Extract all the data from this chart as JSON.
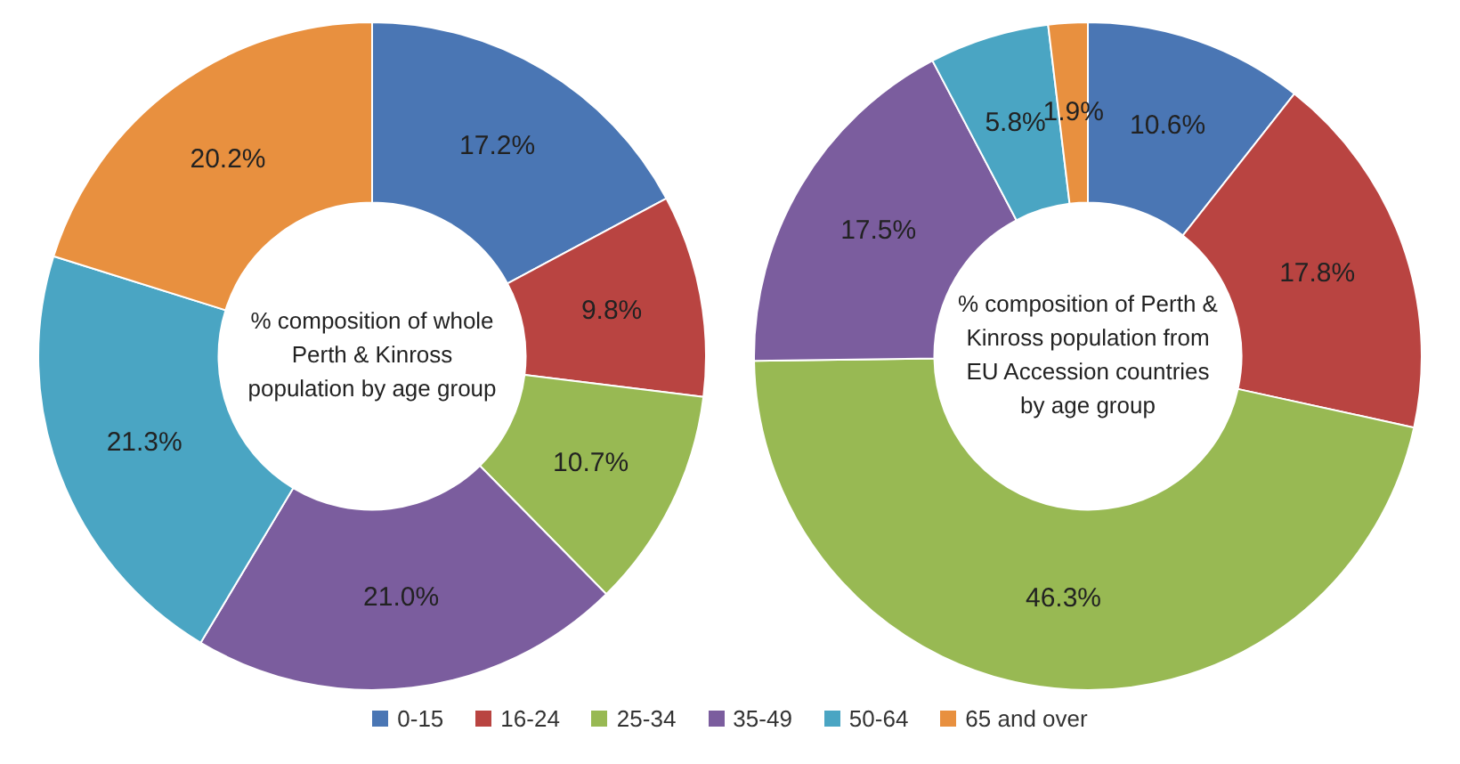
{
  "chart_data": [
    {
      "type": "donut",
      "title": "% composition of whole Perth & Kinross population by age group",
      "categories": [
        "0-15",
        "16-24",
        "25-34",
        "35-49",
        "50-64",
        "65 and over"
      ],
      "values": [
        17.2,
        9.8,
        10.7,
        21.0,
        21.3,
        20.2
      ],
      "value_labels": [
        "17.2%",
        "9.8%",
        "10.7%",
        "21.0%",
        "21.3%",
        "20.2%"
      ],
      "colors": [
        "#4a76b4",
        "#b94441",
        "#98b953",
        "#7b5d9e",
        "#4aa5c3",
        "#e8903f"
      ],
      "legend": "bottom"
    },
    {
      "type": "donut",
      "title": "% composition of Perth & Kinross population from EU Accession countries by age group",
      "categories": [
        null,
        null,
        null,
        null,
        null,
        null
      ],
      "values": [
        10.6,
        17.8,
        46.3,
        17.5,
        5.8,
        1.9
      ],
      "value_labels": [
        "10.6%",
        "17.8%",
        "46.3%",
        "17.5%",
        "5.8%",
        "1.9%"
      ],
      "colors": [
        "#4a76b4",
        "#b94441",
        "#98b953",
        "#7b5d9e",
        "#4aa5c3",
        "#e8903f"
      ]
    }
  ]
}
